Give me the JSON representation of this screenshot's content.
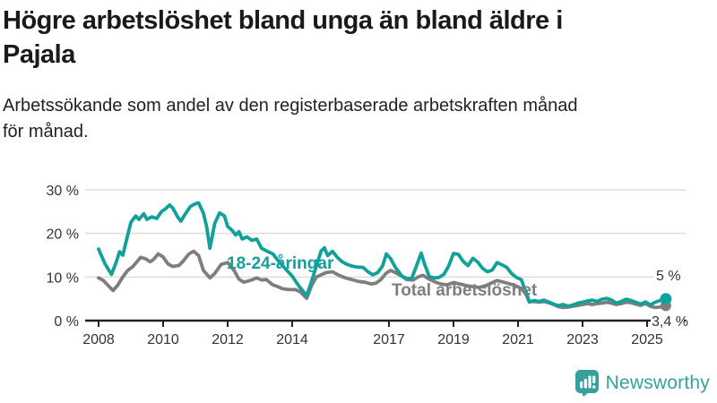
{
  "header": {
    "title_lines": [
      "Högre arbetslöshet bland unga än bland äldre i",
      "Pajala"
    ],
    "subtitle_lines": [
      "Arbetssökande som andel av den registerbaserade arbetskraften månad",
      "för månad."
    ]
  },
  "colors": {
    "accent_teal": "#12a19a",
    "line_gray": "#7e7e7e",
    "axis_line": "#222222",
    "grid_line": "#dcdcdc",
    "axis_text": "#333333",
    "title_text": "#1a1a1a"
  },
  "chart_data": {
    "type": "line",
    "title": "Högre arbetslöshet bland unga än bland äldre i Pajala",
    "subtitle": "Arbetssökande som andel av den registerbaserade arbetskraften månad för månad.",
    "xlabel": "",
    "ylabel": "",
    "unit": "%",
    "grid": "horizontal",
    "x_range": [
      2008,
      2025.7
    ],
    "y_range": [
      0,
      31
    ],
    "x_ticks": [
      2008,
      2010,
      2012,
      2014,
      2017,
      2019,
      2021,
      2023,
      2025
    ],
    "y_ticks": [
      {
        "value": 0,
        "label": "0 %"
      },
      {
        "value": 10,
        "label": "10 %"
      },
      {
        "value": 20,
        "label": "20 %"
      },
      {
        "value": 30,
        "label": "30 %"
      }
    ],
    "series": [
      {
        "name": "Total arbetslöshet",
        "color": "#7e7e7e",
        "end_label": "3,4 %",
        "end_value": 3.4,
        "points": [
          [
            2008.0,
            9.8
          ],
          [
            2008.15,
            9.2
          ],
          [
            2008.3,
            8.0
          ],
          [
            2008.45,
            6.9
          ],
          [
            2008.6,
            8.2
          ],
          [
            2008.75,
            10.0
          ],
          [
            2008.9,
            11.5
          ],
          [
            2009.05,
            12.3
          ],
          [
            2009.2,
            13.6
          ],
          [
            2009.3,
            14.5
          ],
          [
            2009.45,
            14.2
          ],
          [
            2009.6,
            13.5
          ],
          [
            2009.7,
            14.0
          ],
          [
            2009.85,
            15.3
          ],
          [
            2010.0,
            14.6
          ],
          [
            2010.15,
            13.0
          ],
          [
            2010.3,
            12.4
          ],
          [
            2010.5,
            12.7
          ],
          [
            2010.65,
            13.9
          ],
          [
            2010.8,
            15.3
          ],
          [
            2010.95,
            15.9
          ],
          [
            2011.1,
            14.9
          ],
          [
            2011.25,
            11.5
          ],
          [
            2011.45,
            9.8
          ],
          [
            2011.6,
            10.8
          ],
          [
            2011.8,
            12.9
          ],
          [
            2012.0,
            13.3
          ],
          [
            2012.2,
            11.5
          ],
          [
            2012.35,
            9.5
          ],
          [
            2012.5,
            8.8
          ],
          [
            2012.7,
            9.2
          ],
          [
            2012.9,
            9.8
          ],
          [
            2013.05,
            9.3
          ],
          [
            2013.2,
            9.4
          ],
          [
            2013.4,
            8.2
          ],
          [
            2013.55,
            7.8
          ],
          [
            2013.7,
            7.3
          ],
          [
            2013.9,
            7.1
          ],
          [
            2014.1,
            7.1
          ],
          [
            2014.25,
            6.6
          ],
          [
            2014.45,
            5.1
          ],
          [
            2014.6,
            8.0
          ],
          [
            2014.75,
            10.0
          ],
          [
            2014.9,
            10.5
          ],
          [
            2015.05,
            11.0
          ],
          [
            2015.25,
            11.2
          ],
          [
            2015.45,
            10.4
          ],
          [
            2015.65,
            9.8
          ],
          [
            2015.85,
            9.4
          ],
          [
            2016.05,
            9.0
          ],
          [
            2016.25,
            8.8
          ],
          [
            2016.45,
            8.4
          ],
          [
            2016.6,
            8.6
          ],
          [
            2016.75,
            9.4
          ],
          [
            2016.9,
            10.8
          ],
          [
            2017.05,
            11.5
          ],
          [
            2017.2,
            11.0
          ],
          [
            2017.4,
            10.2
          ],
          [
            2017.55,
            9.4
          ],
          [
            2017.75,
            9.3
          ],
          [
            2017.9,
            10.0
          ],
          [
            2018.05,
            10.4
          ],
          [
            2018.25,
            9.5
          ],
          [
            2018.45,
            8.8
          ],
          [
            2018.6,
            8.4
          ],
          [
            2018.8,
            8.2
          ],
          [
            2019.0,
            8.7
          ],
          [
            2019.2,
            8.4
          ],
          [
            2019.4,
            8.0
          ],
          [
            2019.6,
            7.8
          ],
          [
            2019.8,
            7.6
          ],
          [
            2020.0,
            8.0
          ],
          [
            2020.2,
            8.7
          ],
          [
            2020.35,
            9.2
          ],
          [
            2020.55,
            8.8
          ],
          [
            2020.75,
            8.4
          ],
          [
            2020.95,
            7.9
          ],
          [
            2021.1,
            7.4
          ],
          [
            2021.25,
            6.0
          ],
          [
            2021.35,
            4.3
          ],
          [
            2021.5,
            4.4
          ],
          [
            2021.65,
            4.2
          ],
          [
            2021.8,
            4.4
          ],
          [
            2021.95,
            4.1
          ],
          [
            2022.1,
            3.7
          ],
          [
            2022.25,
            3.2
          ],
          [
            2022.4,
            3.0
          ],
          [
            2022.55,
            3.1
          ],
          [
            2022.7,
            3.3
          ],
          [
            2022.85,
            3.5
          ],
          [
            2023.0,
            3.7
          ],
          [
            2023.15,
            3.9
          ],
          [
            2023.3,
            3.7
          ],
          [
            2023.45,
            3.9
          ],
          [
            2023.6,
            4.0
          ],
          [
            2023.75,
            4.2
          ],
          [
            2023.9,
            4.0
          ],
          [
            2024.05,
            3.7
          ],
          [
            2024.2,
            3.9
          ],
          [
            2024.35,
            4.2
          ],
          [
            2024.5,
            4.1
          ],
          [
            2024.65,
            3.8
          ],
          [
            2024.8,
            3.5
          ],
          [
            2024.95,
            3.9
          ],
          [
            2025.1,
            3.3
          ],
          [
            2025.25,
            3.0
          ],
          [
            2025.4,
            3.1
          ],
          [
            2025.58,
            3.4
          ]
        ]
      },
      {
        "name": "18-24-åringar",
        "color": "#12a19a",
        "end_label": "5 %",
        "end_value": 5,
        "points": [
          [
            2008.0,
            16.4
          ],
          [
            2008.2,
            13.0
          ],
          [
            2008.4,
            10.6
          ],
          [
            2008.55,
            13.5
          ],
          [
            2008.65,
            15.8
          ],
          [
            2008.75,
            15.0
          ],
          [
            2008.9,
            19.5
          ],
          [
            2009.0,
            22.5
          ],
          [
            2009.15,
            24.0
          ],
          [
            2009.25,
            23.2
          ],
          [
            2009.4,
            24.5
          ],
          [
            2009.5,
            23.2
          ],
          [
            2009.65,
            23.8
          ],
          [
            2009.8,
            23.4
          ],
          [
            2009.95,
            25.0
          ],
          [
            2010.1,
            25.8
          ],
          [
            2010.2,
            26.5
          ],
          [
            2010.3,
            25.8
          ],
          [
            2010.45,
            23.8
          ],
          [
            2010.55,
            22.8
          ],
          [
            2010.7,
            24.6
          ],
          [
            2010.85,
            26.2
          ],
          [
            2011.0,
            26.8
          ],
          [
            2011.1,
            27.0
          ],
          [
            2011.25,
            24.6
          ],
          [
            2011.35,
            21.5
          ],
          [
            2011.45,
            16.6
          ],
          [
            2011.6,
            22.3
          ],
          [
            2011.75,
            24.7
          ],
          [
            2011.9,
            24.0
          ],
          [
            2012.0,
            21.6
          ],
          [
            2012.15,
            20.6
          ],
          [
            2012.25,
            19.6
          ],
          [
            2012.35,
            20.4
          ],
          [
            2012.45,
            18.7
          ],
          [
            2012.6,
            19.2
          ],
          [
            2012.75,
            18.4
          ],
          [
            2012.9,
            18.7
          ],
          [
            2013.05,
            16.6
          ],
          [
            2013.2,
            16.0
          ],
          [
            2013.4,
            15.3
          ],
          [
            2013.6,
            13.4
          ],
          [
            2013.8,
            11.8
          ],
          [
            2014.0,
            10.2
          ],
          [
            2014.2,
            8.0
          ],
          [
            2014.45,
            5.7
          ],
          [
            2014.6,
            9.0
          ],
          [
            2014.75,
            12.5
          ],
          [
            2014.9,
            16.0
          ],
          [
            2015.0,
            16.7
          ],
          [
            2015.1,
            14.9
          ],
          [
            2015.25,
            15.9
          ],
          [
            2015.4,
            14.5
          ],
          [
            2015.55,
            13.5
          ],
          [
            2015.7,
            12.9
          ],
          [
            2015.85,
            12.5
          ],
          [
            2016.0,
            12.3
          ],
          [
            2016.2,
            12.2
          ],
          [
            2016.35,
            11.2
          ],
          [
            2016.5,
            10.5
          ],
          [
            2016.65,
            11.0
          ],
          [
            2016.8,
            12.5
          ],
          [
            2016.92,
            15.3
          ],
          [
            2017.05,
            14.2
          ],
          [
            2017.2,
            12.2
          ],
          [
            2017.4,
            10.2
          ],
          [
            2017.55,
            9.7
          ],
          [
            2017.7,
            9.6
          ],
          [
            2017.85,
            12.5
          ],
          [
            2018.0,
            15.5
          ],
          [
            2018.1,
            13.0
          ],
          [
            2018.25,
            10.1
          ],
          [
            2018.4,
            9.8
          ],
          [
            2018.55,
            9.9
          ],
          [
            2018.7,
            10.6
          ],
          [
            2018.85,
            12.5
          ],
          [
            2019.0,
            15.4
          ],
          [
            2019.15,
            15.2
          ],
          [
            2019.3,
            13.6
          ],
          [
            2019.45,
            12.6
          ],
          [
            2019.6,
            14.3
          ],
          [
            2019.75,
            13.4
          ],
          [
            2019.9,
            12.0
          ],
          [
            2020.05,
            11.2
          ],
          [
            2020.2,
            11.6
          ],
          [
            2020.35,
            13.3
          ],
          [
            2020.5,
            12.8
          ],
          [
            2020.65,
            12.2
          ],
          [
            2020.8,
            10.8
          ],
          [
            2020.95,
            9.9
          ],
          [
            2021.1,
            9.4
          ],
          [
            2021.25,
            6.5
          ],
          [
            2021.35,
            4.3
          ],
          [
            2021.5,
            4.6
          ],
          [
            2021.65,
            4.4
          ],
          [
            2021.8,
            4.7
          ],
          [
            2021.95,
            4.3
          ],
          [
            2022.1,
            3.8
          ],
          [
            2022.25,
            3.4
          ],
          [
            2022.4,
            3.7
          ],
          [
            2022.55,
            3.3
          ],
          [
            2022.7,
            3.6
          ],
          [
            2022.85,
            4.0
          ],
          [
            2023.0,
            4.2
          ],
          [
            2023.15,
            4.5
          ],
          [
            2023.3,
            4.7
          ],
          [
            2023.45,
            4.4
          ],
          [
            2023.6,
            4.9
          ],
          [
            2023.75,
            5.1
          ],
          [
            2023.9,
            4.7
          ],
          [
            2024.05,
            4.0
          ],
          [
            2024.2,
            4.4
          ],
          [
            2024.35,
            4.9
          ],
          [
            2024.5,
            4.6
          ],
          [
            2024.65,
            4.2
          ],
          [
            2024.8,
            3.8
          ],
          [
            2024.95,
            4.3
          ],
          [
            2025.1,
            3.6
          ],
          [
            2025.25,
            4.2
          ],
          [
            2025.4,
            4.6
          ],
          [
            2025.58,
            5.0
          ]
        ]
      }
    ],
    "legend_position": "inline-labels"
  },
  "footer": {
    "brand": "Newsworthy"
  }
}
